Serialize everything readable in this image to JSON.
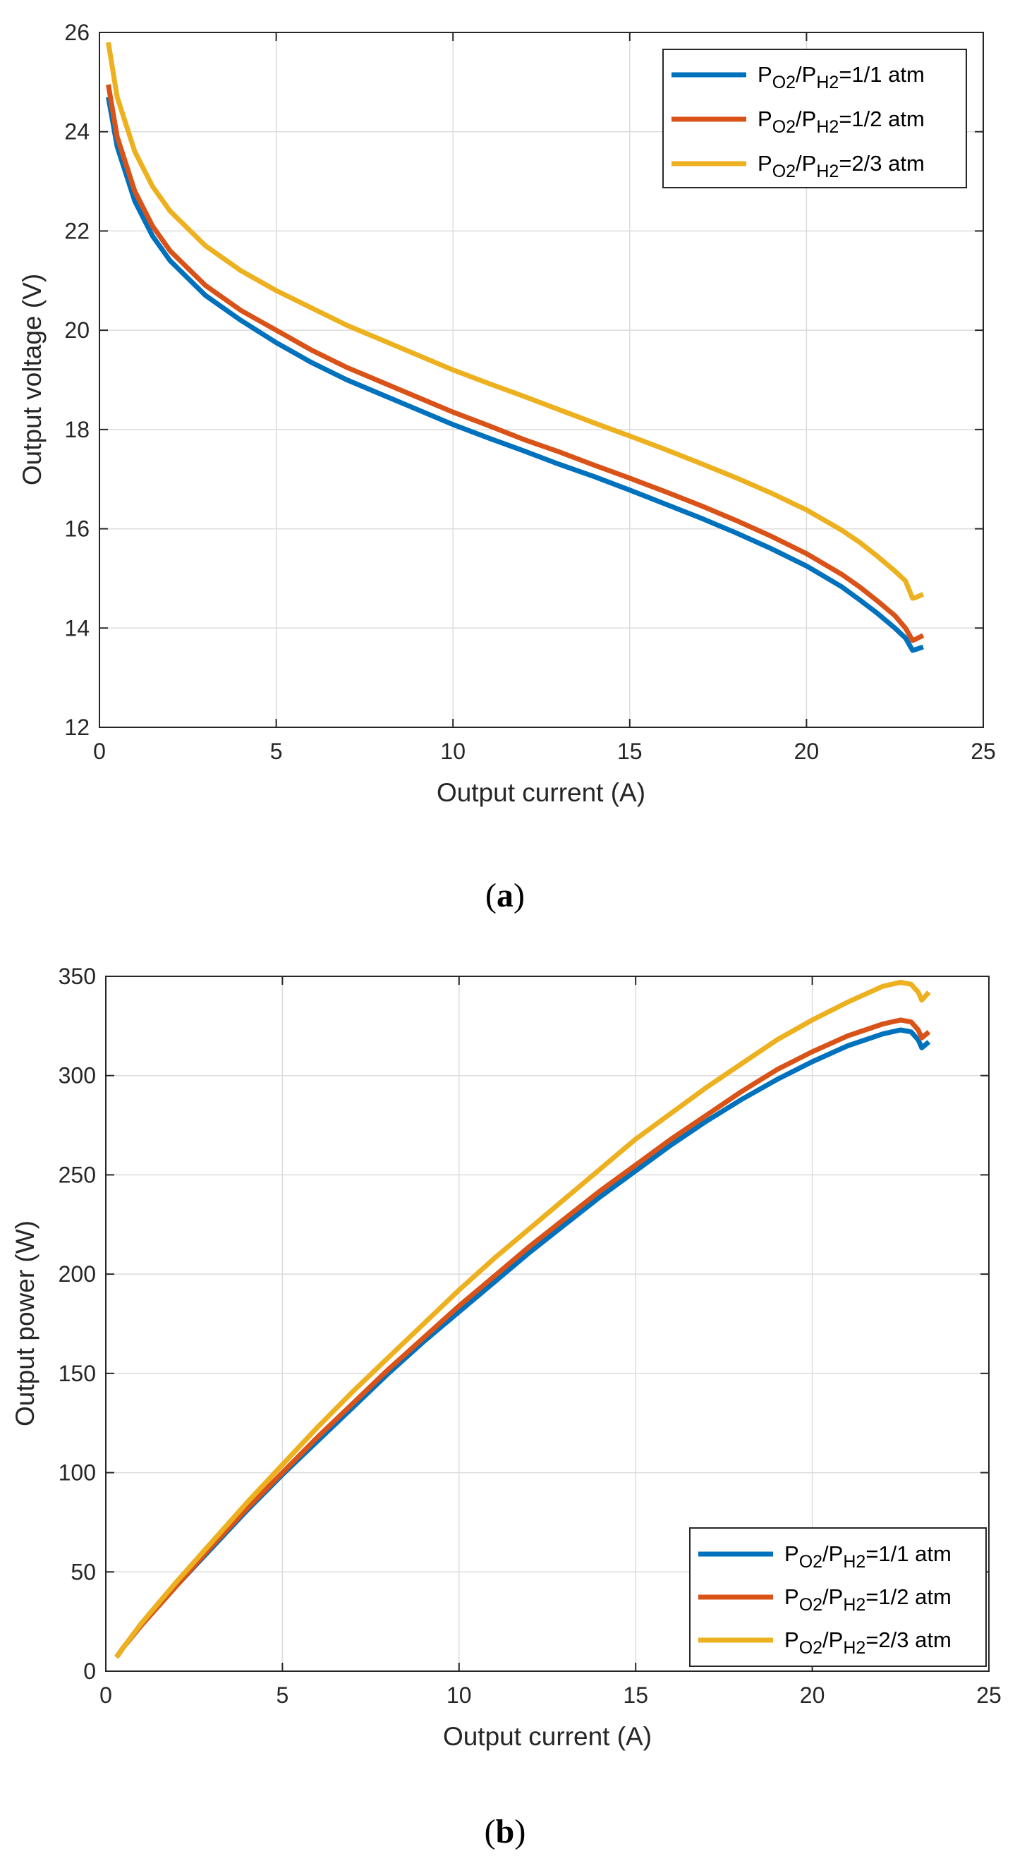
{
  "chart_data": [
    {
      "type": "line",
      "panel_label": "a",
      "title": "",
      "xlabel": "Output current (A)",
      "ylabel": "Output voltage (V)",
      "xlim": [
        0,
        25
      ],
      "ylim": [
        12,
        26
      ],
      "xticks": [
        0,
        5,
        10,
        15,
        20,
        25
      ],
      "yticks": [
        12,
        14,
        16,
        18,
        20,
        22,
        24,
        26
      ],
      "grid": true,
      "legend_position": "top-right",
      "series": [
        {
          "name": "PO2/PH2=1/1 atm",
          "legend": {
            "p1": "P",
            "s1": "O2",
            "p2": "/P",
            "s2": "H2",
            "p3": "=1/1 atm"
          },
          "color": "#0072BD",
          "x": [
            0.25,
            0.5,
            1,
            1.5,
            2,
            3,
            4,
            5,
            6,
            7,
            8,
            9,
            10,
            11,
            12,
            13,
            14,
            15,
            16,
            17,
            18,
            19,
            20,
            21,
            21.5,
            22,
            22.5,
            22.8,
            23.0,
            23.1,
            23.3
          ],
          "y": [
            24.7,
            23.7,
            22.6,
            21.9,
            21.4,
            20.7,
            20.2,
            19.75,
            19.35,
            19.0,
            18.7,
            18.4,
            18.1,
            17.83,
            17.57,
            17.3,
            17.05,
            16.78,
            16.5,
            16.22,
            15.92,
            15.6,
            15.25,
            14.83,
            14.57,
            14.3,
            14.0,
            13.8,
            13.55,
            13.57,
            13.62
          ]
        },
        {
          "name": "PO2/PH2=1/2 atm",
          "legend": {
            "p1": "P",
            "s1": "O2",
            "p2": "/P",
            "s2": "H2",
            "p3": "=1/2 atm"
          },
          "color": "#D95319",
          "x": [
            0.25,
            0.5,
            1,
            1.5,
            2,
            3,
            4,
            5,
            6,
            7,
            8,
            9,
            10,
            11,
            12,
            13,
            14,
            15,
            16,
            17,
            18,
            19,
            20,
            21,
            21.5,
            22,
            22.5,
            22.8,
            23.0,
            23.1,
            23.3
          ],
          "y": [
            24.95,
            23.9,
            22.8,
            22.1,
            21.6,
            20.9,
            20.4,
            20.0,
            19.6,
            19.25,
            18.95,
            18.65,
            18.35,
            18.08,
            17.8,
            17.55,
            17.28,
            17.02,
            16.75,
            16.47,
            16.17,
            15.85,
            15.5,
            15.08,
            14.83,
            14.55,
            14.25,
            14.0,
            13.75,
            13.78,
            13.85
          ]
        },
        {
          "name": "PO2/PH2=2/3 atm",
          "legend": {
            "p1": "P",
            "s1": "O2",
            "p2": "/P",
            "s2": "H2",
            "p3": "=2/3 atm"
          },
          "color": "#EDB120",
          "x": [
            0.25,
            0.5,
            1,
            1.5,
            2,
            3,
            4,
            5,
            6,
            7,
            8,
            9,
            10,
            11,
            12,
            13,
            14,
            15,
            16,
            17,
            18,
            19,
            20,
            21,
            21.5,
            22,
            22.5,
            22.8,
            23.0,
            23.1,
            23.3
          ],
          "y": [
            25.8,
            24.7,
            23.6,
            22.9,
            22.4,
            21.7,
            21.2,
            20.8,
            20.45,
            20.1,
            19.8,
            19.5,
            19.2,
            18.93,
            18.67,
            18.4,
            18.13,
            17.87,
            17.6,
            17.32,
            17.03,
            16.72,
            16.38,
            15.97,
            15.73,
            15.45,
            15.15,
            14.95,
            14.6,
            14.62,
            14.68
          ]
        }
      ]
    },
    {
      "type": "line",
      "panel_label": "b",
      "title": "",
      "xlabel": "Output current (A)",
      "ylabel": "Output power (W)",
      "xlim": [
        0,
        25
      ],
      "ylim": [
        0,
        350
      ],
      "xticks": [
        0,
        5,
        10,
        15,
        20,
        25
      ],
      "yticks": [
        0,
        50,
        100,
        150,
        200,
        250,
        300,
        350
      ],
      "grid": true,
      "legend_position": "bottom-right",
      "series": [
        {
          "name": "PO2/PH2=1/1 atm",
          "legend": {
            "p1": "P",
            "s1": "O2",
            "p2": "/P",
            "s2": "H2",
            "p3": "=1/1 atm"
          },
          "color": "#0072BD",
          "x": [
            0.3,
            0.5,
            1,
            2,
            3,
            4,
            5,
            6,
            7,
            8,
            9,
            10,
            11,
            12,
            13,
            14,
            15,
            16,
            17,
            18,
            19,
            20,
            21,
            22,
            22.5,
            22.8,
            23.0,
            23.1,
            23.3
          ],
          "y": [
            7,
            12,
            23,
            43,
            62,
            81,
            99,
            116,
            133,
            150,
            166,
            181,
            196,
            211,
            225,
            239,
            252,
            265,
            277,
            288,
            298,
            307,
            315,
            321,
            323,
            322,
            318,
            314,
            317
          ]
        },
        {
          "name": "PO2/PH2=1/2 atm",
          "legend": {
            "p1": "P",
            "s1": "O2",
            "p2": "/P",
            "s2": "H2",
            "p3": "=1/2 atm"
          },
          "color": "#D95319",
          "x": [
            0.3,
            0.5,
            1,
            2,
            3,
            4,
            5,
            6,
            7,
            8,
            9,
            10,
            11,
            12,
            13,
            14,
            15,
            16,
            17,
            18,
            19,
            20,
            21,
            22,
            22.5,
            22.8,
            23.0,
            23.1,
            23.3
          ],
          "y": [
            7,
            12,
            23,
            43,
            63,
            82,
            100,
            118,
            135,
            152,
            168,
            184,
            199,
            214,
            228,
            242,
            255,
            268,
            280,
            292,
            303,
            312,
            320,
            326,
            328,
            327,
            323,
            319,
            322
          ]
        },
        {
          "name": "PO2/PH2=2/3 atm",
          "legend": {
            "p1": "P",
            "s1": "O2",
            "p2": "/P",
            "s2": "H2",
            "p3": "=2/3 atm"
          },
          "color": "#EDB120",
          "x": [
            0.3,
            0.5,
            1,
            2,
            3,
            4,
            5,
            6,
            7,
            8,
            9,
            10,
            11,
            12,
            13,
            14,
            15,
            16,
            17,
            18,
            19,
            20,
            21,
            22,
            22.5,
            22.8,
            23.0,
            23.1,
            23.3
          ],
          "y": [
            7,
            12,
            24,
            45,
            65,
            85,
            104,
            123,
            141,
            158,
            175,
            192,
            208,
            223,
            238,
            253,
            268,
            281,
            294,
            306,
            318,
            328,
            337,
            345,
            347,
            346,
            342,
            338,
            342
          ]
        }
      ]
    }
  ]
}
